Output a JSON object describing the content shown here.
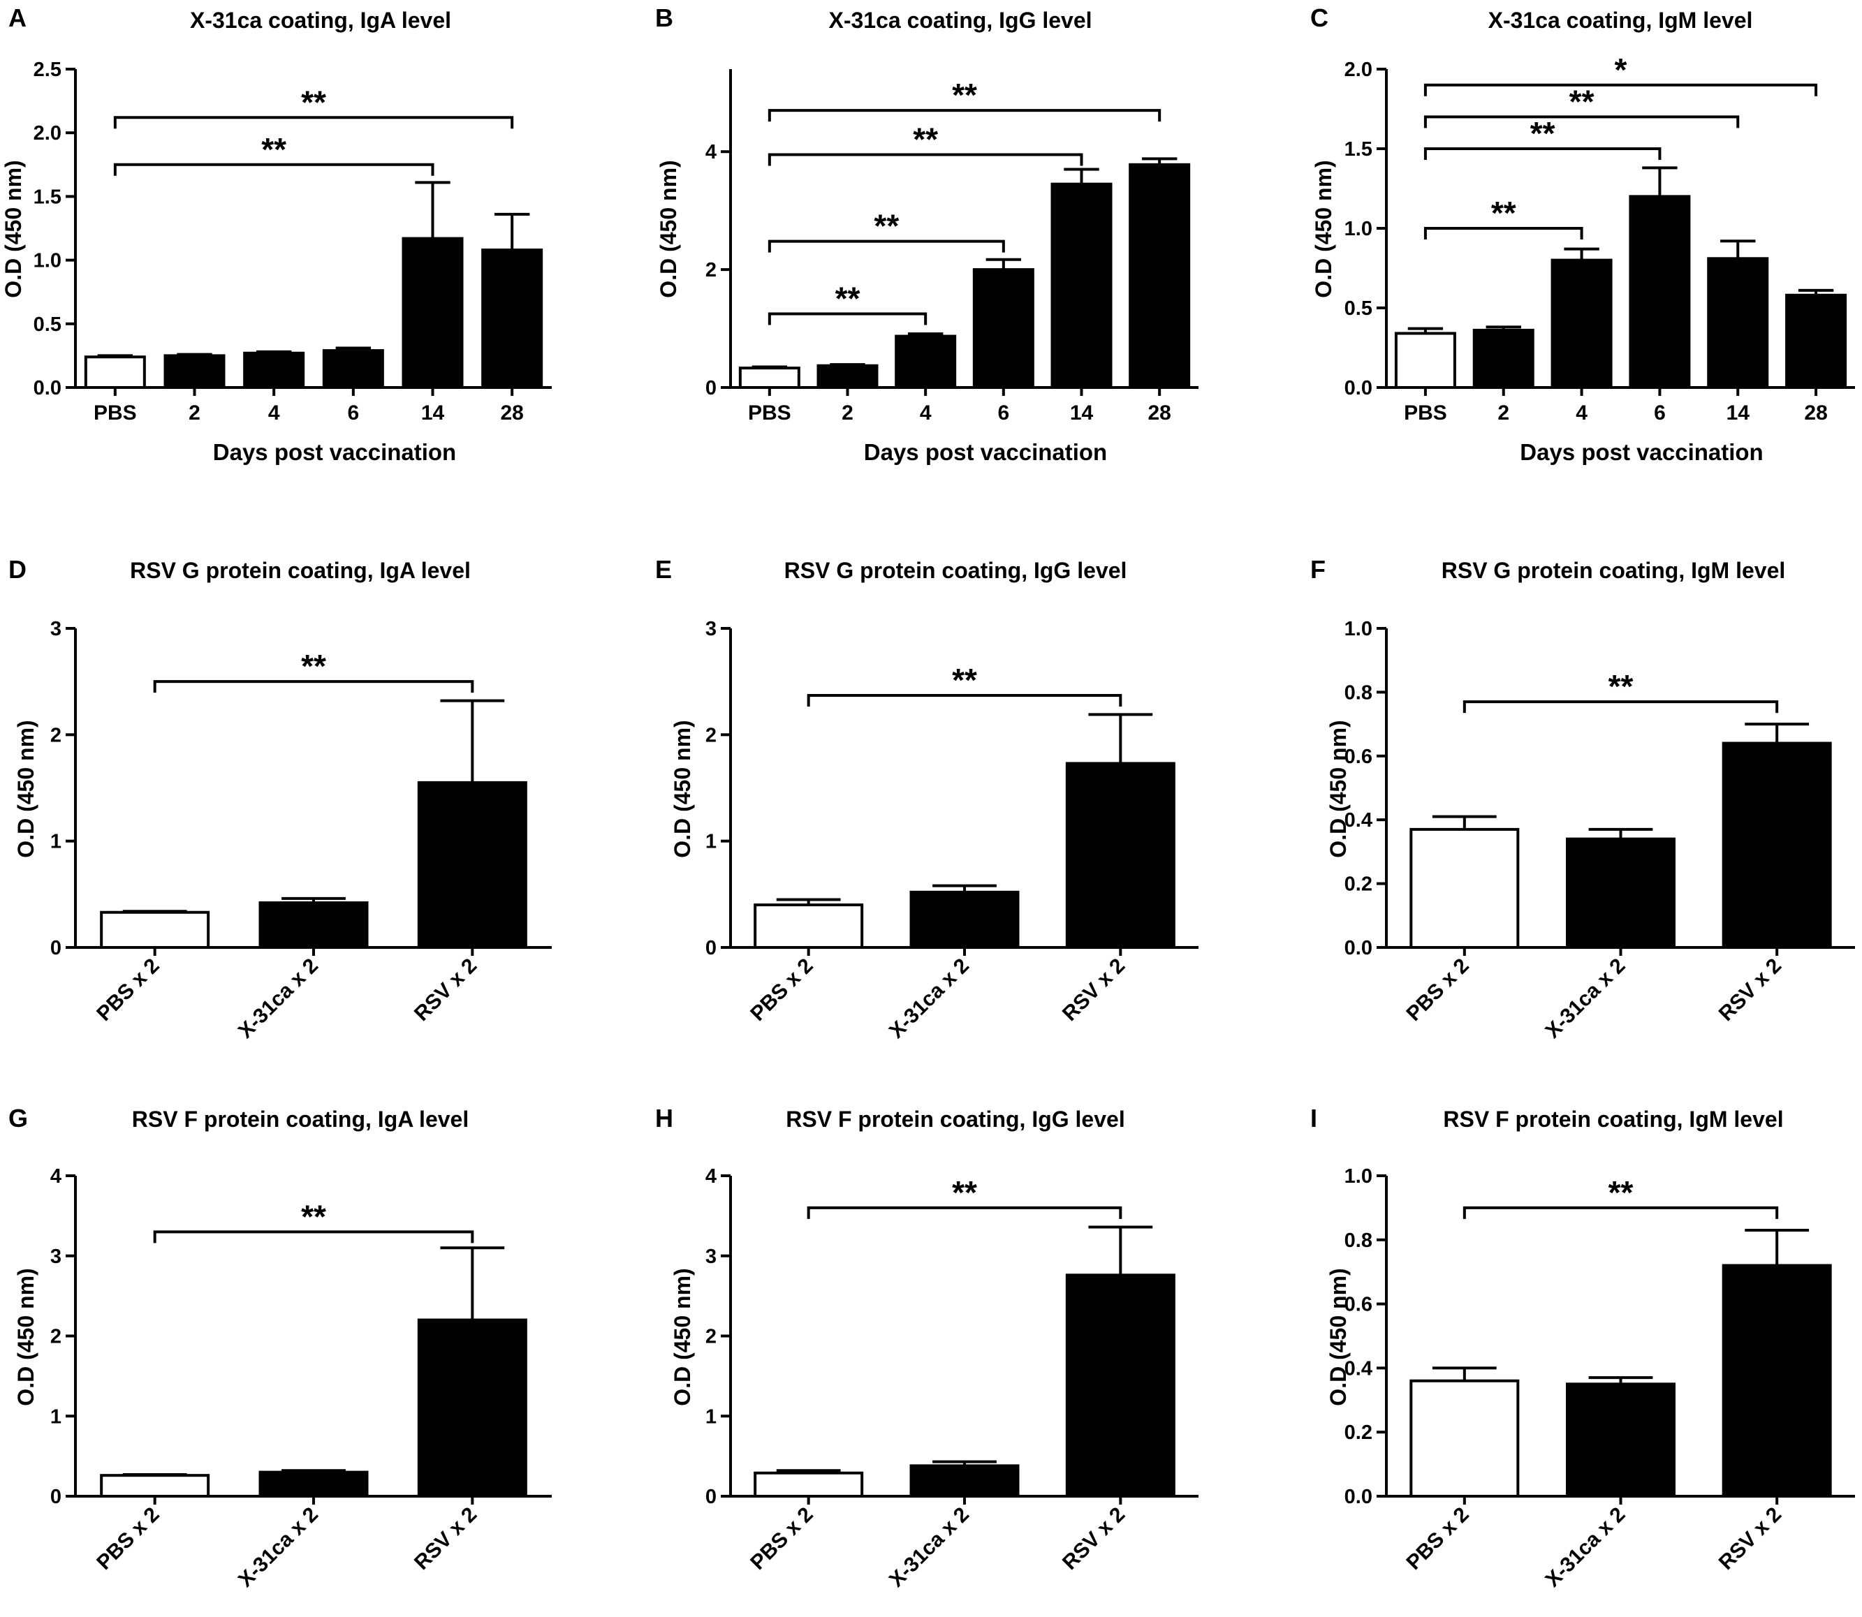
{
  "figure": {
    "colors": {
      "ink": "#000000",
      "open_bar": "#ffffff",
      "filled_bar": "#000000"
    }
  },
  "chart_data": [
    {
      "panel": "A",
      "type": "bar",
      "title": "X-31ca coating, IgA level",
      "xlabel": "Days post vaccination",
      "ylabel": "O.D (450 nm)",
      "categories": [
        "PBS",
        "2",
        "4",
        "6",
        "14",
        "28"
      ],
      "values": [
        0.24,
        0.25,
        0.27,
        0.29,
        1.17,
        1.08
      ],
      "errors": [
        0.01,
        0.01,
        0.01,
        0.02,
        0.44,
        0.28
      ],
      "open_bars": [
        0
      ],
      "ylim": [
        0,
        2.5
      ],
      "yticks": [
        0,
        0.5,
        1.0,
        1.5,
        2.0,
        2.5
      ],
      "ytick_labels": [
        "0.0",
        "0.5",
        "1.0",
        "1.5",
        "2.0",
        "2.5"
      ],
      "significance": [
        {
          "from": 0,
          "to": 4,
          "y": 1.75,
          "label": "**"
        },
        {
          "from": 0,
          "to": 5,
          "y": 2.12,
          "label": "**"
        }
      ]
    },
    {
      "panel": "B",
      "type": "bar",
      "title": "X-31ca coating, IgG level",
      "xlabel": "Days post vaccination",
      "ylabel": "O.D (450 nm)",
      "categories": [
        "PBS",
        "2",
        "4",
        "6",
        "14",
        "28"
      ],
      "values": [
        0.33,
        0.37,
        0.87,
        2.0,
        3.45,
        3.78
      ],
      "errors": [
        0.02,
        0.02,
        0.04,
        0.17,
        0.25,
        0.1
      ],
      "open_bars": [
        0
      ],
      "ylim": [
        0,
        5.4
      ],
      "yticks": [
        0,
        2,
        4
      ],
      "ytick_labels": [
        "0",
        "2",
        "4"
      ],
      "significance": [
        {
          "from": 0,
          "to": 2,
          "y": 1.25,
          "label": "**"
        },
        {
          "from": 0,
          "to": 3,
          "y": 2.48,
          "label": "**"
        },
        {
          "from": 0,
          "to": 4,
          "y": 3.95,
          "label": "**"
        },
        {
          "from": 0,
          "to": 5,
          "y": 4.7,
          "label": "**"
        }
      ]
    },
    {
      "panel": "C",
      "type": "bar",
      "title": "X-31ca coating, IgM level",
      "xlabel": "Days post vaccination",
      "ylabel": "O.D (450 nm)",
      "categories": [
        "PBS",
        "2",
        "4",
        "6",
        "14",
        "28"
      ],
      "values": [
        0.34,
        0.36,
        0.8,
        1.2,
        0.81,
        0.58
      ],
      "errors": [
        0.03,
        0.02,
        0.07,
        0.18,
        0.11,
        0.03
      ],
      "open_bars": [
        0
      ],
      "ylim": [
        0,
        2.0
      ],
      "yticks": [
        0,
        0.5,
        1.0,
        1.5,
        2.0
      ],
      "ytick_labels": [
        "0.0",
        "0.5",
        "1.0",
        "1.5",
        "2.0"
      ],
      "significance": [
        {
          "from": 0,
          "to": 2,
          "y": 1.0,
          "label": "**"
        },
        {
          "from": 0,
          "to": 3,
          "y": 1.5,
          "label": "**"
        },
        {
          "from": 0,
          "to": 4,
          "y": 1.7,
          "label": "**"
        },
        {
          "from": 0,
          "to": 5,
          "y": 1.9,
          "label": "*"
        }
      ]
    },
    {
      "panel": "D",
      "type": "bar",
      "title": "RSV G protein coating, IgA level",
      "xlabel": "",
      "ylabel": "O.D (450 nm)",
      "categories": [
        "PBS x 2",
        "X-31ca x 2",
        "RSV x 2"
      ],
      "values": [
        0.33,
        0.42,
        1.55
      ],
      "errors": [
        0.01,
        0.04,
        0.77
      ],
      "open_bars": [
        0
      ],
      "ylim": [
        0,
        3
      ],
      "yticks": [
        0,
        1,
        2,
        3
      ],
      "ytick_labels": [
        "0",
        "1",
        "2",
        "3"
      ],
      "significance": [
        {
          "from": 0,
          "to": 2,
          "y": 2.5,
          "label": "**"
        }
      ]
    },
    {
      "panel": "E",
      "type": "bar",
      "title": "RSV G protein coating, IgG level",
      "xlabel": "",
      "ylabel": "O.D (450 nm)",
      "categories": [
        "PBS x 2",
        "X-31ca x 2",
        "RSV x 2"
      ],
      "values": [
        0.4,
        0.52,
        1.73
      ],
      "errors": [
        0.05,
        0.06,
        0.46
      ],
      "open_bars": [
        0
      ],
      "ylim": [
        0,
        3
      ],
      "yticks": [
        0,
        1,
        2,
        3
      ],
      "ytick_labels": [
        "0",
        "1",
        "2",
        "3"
      ],
      "significance": [
        {
          "from": 0,
          "to": 2,
          "y": 2.37,
          "label": "**"
        }
      ]
    },
    {
      "panel": "F",
      "type": "bar",
      "title": "RSV G protein coating, IgM level",
      "xlabel": "",
      "ylabel": "O.D (450 nm)",
      "categories": [
        "PBS x 2",
        "X-31ca x 2",
        "RSV x 2"
      ],
      "values": [
        0.37,
        0.34,
        0.64
      ],
      "errors": [
        0.04,
        0.03,
        0.06
      ],
      "open_bars": [
        0
      ],
      "ylim": [
        0,
        1.0
      ],
      "yticks": [
        0,
        0.2,
        0.4,
        0.6,
        0.8,
        1.0
      ],
      "ytick_labels": [
        "0.0",
        "0.2",
        "0.4",
        "0.6",
        "0.8",
        "1.0"
      ],
      "significance": [
        {
          "from": 0,
          "to": 2,
          "y": 0.77,
          "label": "**"
        }
      ]
    },
    {
      "panel": "G",
      "type": "bar",
      "title": "RSV F protein coating, IgA level",
      "xlabel": "",
      "ylabel": "O.D (450 nm)",
      "categories": [
        "PBS x 2",
        "X-31ca x 2",
        "RSV x 2"
      ],
      "values": [
        0.26,
        0.3,
        2.2
      ],
      "errors": [
        0.01,
        0.02,
        0.9
      ],
      "open_bars": [
        0
      ],
      "ylim": [
        0,
        4
      ],
      "yticks": [
        0,
        1,
        2,
        3,
        4
      ],
      "ytick_labels": [
        "0",
        "1",
        "2",
        "3",
        "4"
      ],
      "significance": [
        {
          "from": 0,
          "to": 2,
          "y": 3.3,
          "label": "**"
        }
      ]
    },
    {
      "panel": "H",
      "type": "bar",
      "title": "RSV F protein coating, IgG level",
      "xlabel": "",
      "ylabel": "O.D (450 nm)",
      "categories": [
        "PBS x 2",
        "X-31ca x 2",
        "RSV x 2"
      ],
      "values": [
        0.29,
        0.38,
        2.76
      ],
      "errors": [
        0.03,
        0.05,
        0.6
      ],
      "open_bars": [
        0
      ],
      "ylim": [
        0,
        4
      ],
      "yticks": [
        0,
        1,
        2,
        3,
        4
      ],
      "ytick_labels": [
        "0",
        "1",
        "2",
        "3",
        "4"
      ],
      "significance": [
        {
          "from": 0,
          "to": 2,
          "y": 3.6,
          "label": "**"
        }
      ]
    },
    {
      "panel": "I",
      "type": "bar",
      "title": "RSV F protein coating, IgM level",
      "xlabel": "",
      "ylabel": "O.D (450 nm)",
      "categories": [
        "PBS x 2",
        "X-31ca x 2",
        "RSV x 2"
      ],
      "values": [
        0.36,
        0.35,
        0.72
      ],
      "errors": [
        0.04,
        0.02,
        0.11
      ],
      "open_bars": [
        0
      ],
      "ylim": [
        0,
        1.0
      ],
      "yticks": [
        0,
        0.2,
        0.4,
        0.6,
        0.8,
        1.0
      ],
      "ytick_labels": [
        "0.0",
        "0.2",
        "0.4",
        "0.6",
        "0.8",
        "1.0"
      ],
      "significance": [
        {
          "from": 0,
          "to": 2,
          "y": 0.9,
          "label": "**"
        }
      ]
    }
  ]
}
